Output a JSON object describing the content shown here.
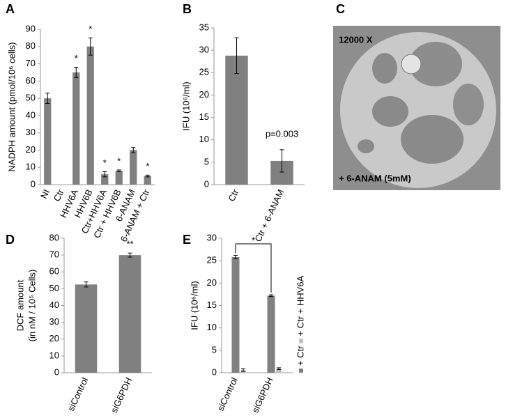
{
  "chart_data": [
    {
      "type": "bar",
      "panel_label": "A",
      "ylabel": [
        "NADPH amount (pmol/10⁶ cells)"
      ],
      "categories": [
        "NI",
        "Ctr",
        "HHV6A",
        "HHV6B",
        "Ctr+HHV6A",
        "Ctr + HHV6B",
        "6-ANAM",
        "6-ANAM + Ctr"
      ],
      "values": [
        50,
        0,
        65,
        80,
        6,
        8,
        20,
        5
      ],
      "errors": [
        3,
        null,
        3,
        5,
        1.5,
        0.5,
        1.5,
        0.5
      ],
      "significance": [
        null,
        null,
        "*",
        "*",
        "*",
        "*",
        null,
        "*"
      ],
      "color": "#808080",
      "ylim": [
        0,
        90
      ],
      "yticks": [
        0,
        10,
        20,
        30,
        40,
        50,
        60,
        70,
        80,
        90
      ]
    },
    {
      "type": "bar",
      "panel_label": "B",
      "ylabel": [
        "IFU (10⁶/ml)"
      ],
      "categories": [
        "Ctr",
        "Ctr + 6-ANAM"
      ],
      "values": [
        28.8,
        5.3
      ],
      "errors": [
        4,
        2.5
      ],
      "annotation": "p=0.003",
      "color": "#808080",
      "ylim": [
        0,
        35
      ],
      "yticks": [
        0,
        5,
        10,
        15,
        20,
        25,
        30,
        35
      ]
    },
    {
      "type": "bar",
      "panel_label": "D",
      "ylabel": [
        "DCF amount",
        "(in nM / 10⁵ Cells)"
      ],
      "categories": [
        "siControl",
        "siG6PDH"
      ],
      "values": [
        52.5,
        70
      ],
      "errors": [
        1.5,
        1.2
      ],
      "significance": [
        null,
        "**"
      ],
      "color": "#808080",
      "ylim": [
        0,
        80
      ],
      "yticks": [
        0,
        10,
        20,
        30,
        40,
        50,
        60,
        70,
        80
      ]
    },
    {
      "type": "bar",
      "panel_label": "E",
      "ylabel": [
        "IFU (10⁶/ml)"
      ],
      "categories": [
        "siControl",
        "siG6PDH"
      ],
      "series": [
        {
          "name": "+ Ctr",
          "color": "#808080",
          "values": [
            25.8,
            17.2
          ],
          "errors": [
            0.4,
            0.2
          ]
        },
        {
          "name": "+ Ctr + HHV6A",
          "color": "#c0c0c0",
          "values": [
            0.6,
            0.9
          ],
          "errors": [
            0.3,
            0.2
          ]
        }
      ],
      "bracket_label": "*",
      "ylim": [
        0,
        30
      ],
      "yticks": [
        0,
        5,
        10,
        15,
        20,
        25,
        30
      ]
    }
  ],
  "image_panel": {
    "panel_label": "C",
    "magnification": "12000 X",
    "treatment": "+ 6-ANAM (5mM)"
  }
}
